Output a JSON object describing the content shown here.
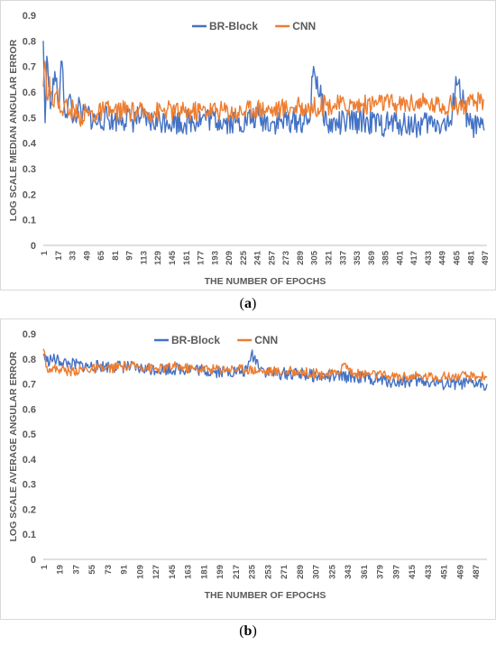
{
  "colors": {
    "br_block": "#4472C4",
    "cnn": "#ED7D31",
    "axis": "#bfbfbf",
    "text": "#595959"
  },
  "captions": {
    "a": "a",
    "b": "b"
  },
  "chart_data": [
    {
      "type": "line",
      "ylabel": "LOG SCALE MEDIAN ANGULAR ERROR",
      "xlabel": "THE NUMBER OF EPOCHS",
      "ylim": [
        0,
        0.9
      ],
      "yticks": [
        "0",
        "0.1",
        "0.2",
        "0.3",
        "0.4",
        "0.5",
        "0.6",
        "0.7",
        "0.8",
        "0.9"
      ],
      "xlim": [
        1,
        500
      ],
      "xticks": [
        1,
        17,
        33,
        49,
        65,
        81,
        97,
        113,
        129,
        145,
        161,
        177,
        193,
        209,
        225,
        241,
        257,
        273,
        289,
        305,
        321,
        337,
        353,
        369,
        385,
        401,
        417,
        433,
        449,
        465,
        481,
        497
      ],
      "legend_position": "top-center",
      "grid": false,
      "series": [
        {
          "name": "BR-Block",
          "color": "#4472C4",
          "x": [
            1,
            3,
            5,
            7,
            10,
            14,
            18,
            22,
            26,
            30,
            35,
            40,
            45,
            50,
            60,
            70,
            80,
            90,
            100,
            110,
            120,
            140,
            160,
            180,
            200,
            220,
            240,
            260,
            280,
            300,
            305,
            320,
            340,
            360,
            380,
            400,
            420,
            440,
            460,
            465,
            480,
            497
          ],
          "y": [
            0.8,
            0.48,
            0.74,
            0.62,
            0.56,
            0.68,
            0.54,
            0.72,
            0.5,
            0.58,
            0.49,
            0.54,
            0.5,
            0.52,
            0.48,
            0.5,
            0.49,
            0.5,
            0.49,
            0.5,
            0.48,
            0.49,
            0.48,
            0.5,
            0.49,
            0.48,
            0.5,
            0.48,
            0.49,
            0.48,
            0.7,
            0.47,
            0.48,
            0.49,
            0.47,
            0.48,
            0.47,
            0.48,
            0.47,
            0.66,
            0.47,
            0.45
          ]
        },
        {
          "name": "CNN",
          "color": "#ED7D31",
          "x": [
            1,
            3,
            5,
            8,
            12,
            16,
            20,
            25,
            30,
            35,
            40,
            50,
            60,
            70,
            80,
            90,
            100,
            120,
            140,
            160,
            180,
            200,
            220,
            240,
            260,
            280,
            300,
            320,
            340,
            360,
            380,
            400,
            420,
            440,
            460,
            480,
            497
          ],
          "y": [
            0.62,
            0.72,
            0.58,
            0.66,
            0.55,
            0.6,
            0.52,
            0.56,
            0.51,
            0.54,
            0.5,
            0.52,
            0.51,
            0.53,
            0.52,
            0.53,
            0.52,
            0.52,
            0.53,
            0.52,
            0.53,
            0.53,
            0.52,
            0.54,
            0.53,
            0.54,
            0.54,
            0.55,
            0.55,
            0.55,
            0.56,
            0.55,
            0.56,
            0.55,
            0.55,
            0.55,
            0.57
          ]
        }
      ]
    },
    {
      "type": "line",
      "ylabel": "LOG SCALE AVERAGE ANGULAR ERROR",
      "xlabel": "THE NUMBER OF EPOCHS",
      "ylim": [
        0,
        0.9
      ],
      "yticks": [
        "0",
        "0.1",
        "0.2",
        "0.3",
        "0.4",
        "0.5",
        "0.6",
        "0.7",
        "0.8",
        "0.9"
      ],
      "xlim": [
        1,
        500
      ],
      "xticks": [
        1,
        19,
        37,
        55,
        73,
        91,
        109,
        127,
        145,
        163,
        181,
        199,
        217,
        235,
        253,
        271,
        289,
        307,
        325,
        343,
        361,
        379,
        397,
        415,
        433,
        451,
        469,
        487
      ],
      "legend_position": "top-center",
      "grid": false,
      "series": [
        {
          "name": "BR-Block",
          "color": "#4472C4",
          "x": [
            1,
            5,
            10,
            20,
            30,
            50,
            70,
            90,
            110,
            130,
            150,
            170,
            190,
            210,
            230,
            235,
            250,
            270,
            290,
            310,
            330,
            350,
            370,
            390,
            410,
            430,
            450,
            470,
            490,
            500
          ],
          "y": [
            0.82,
            0.79,
            0.8,
            0.79,
            0.78,
            0.77,
            0.77,
            0.77,
            0.76,
            0.76,
            0.76,
            0.76,
            0.75,
            0.75,
            0.75,
            0.82,
            0.75,
            0.74,
            0.74,
            0.73,
            0.73,
            0.73,
            0.72,
            0.71,
            0.71,
            0.71,
            0.7,
            0.7,
            0.7,
            0.7
          ]
        },
        {
          "name": "CNN",
          "color": "#ED7D31",
          "x": [
            1,
            5,
            10,
            20,
            30,
            50,
            70,
            90,
            110,
            130,
            150,
            170,
            190,
            210,
            230,
            250,
            270,
            290,
            310,
            330,
            340,
            350,
            370,
            390,
            410,
            430,
            450,
            470,
            490,
            500
          ],
          "y": [
            0.84,
            0.77,
            0.76,
            0.76,
            0.75,
            0.76,
            0.76,
            0.77,
            0.77,
            0.76,
            0.77,
            0.76,
            0.76,
            0.76,
            0.76,
            0.75,
            0.75,
            0.75,
            0.74,
            0.74,
            0.78,
            0.74,
            0.74,
            0.73,
            0.73,
            0.73,
            0.73,
            0.73,
            0.73,
            0.73
          ]
        }
      ]
    }
  ]
}
